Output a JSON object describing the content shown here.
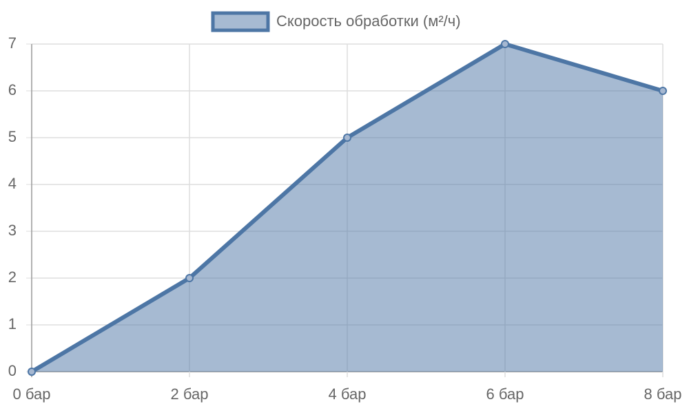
{
  "chart_data": {
    "type": "area",
    "categories": [
      "0 бар",
      "2 бар",
      "4 бар",
      "6 бар",
      "8 бар"
    ],
    "series": [
      {
        "name": "Скорость обработки (м²/ч)",
        "color": "#4d76a5",
        "values": [
          0,
          2,
          5,
          7,
          6
        ]
      }
    ],
    "ylim": [
      0,
      7
    ],
    "yticks": [
      0,
      1,
      2,
      3,
      4,
      5,
      6,
      7
    ],
    "grid": true,
    "legend": "top"
  }
}
